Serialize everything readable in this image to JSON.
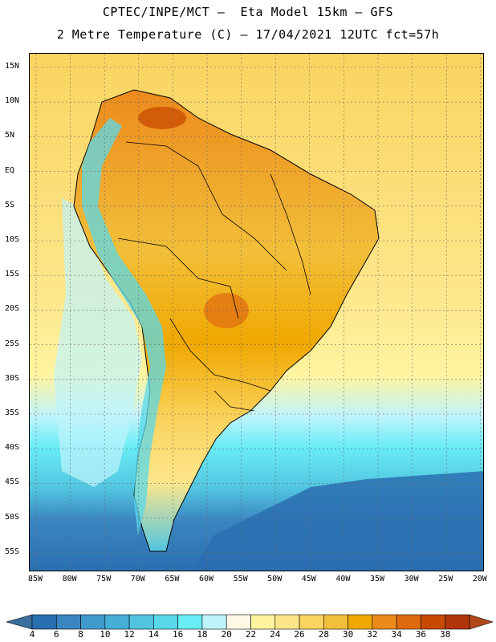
{
  "header": {
    "line1": "CPTEC/INPE/MCT –  Eta Model 15km – GFS",
    "line2": "2 Metre Temperature (C) – 17/04/2021 12UTC fct=57h"
  },
  "map": {
    "variable": "2 Metre Temperature",
    "units": "C",
    "lat_labels": [
      "15N",
      "10N",
      "5N",
      "EQ",
      "5S",
      "10S",
      "15S",
      "20S",
      "25S",
      "30S",
      "35S",
      "40S",
      "45S",
      "50S",
      "55S"
    ],
    "lon_labels": [
      "85W",
      "80W",
      "75W",
      "70W",
      "65W",
      "60W",
      "55W",
      "50W",
      "45W",
      "40W",
      "35W",
      "30W",
      "25W",
      "20W"
    ]
  },
  "colorbar": {
    "labels": [
      "4",
      "6",
      "8",
      "10",
      "12",
      "14",
      "16",
      "18",
      "20",
      "22",
      "24",
      "26",
      "28",
      "30",
      "32",
      "34",
      "36",
      "38"
    ],
    "colors": [
      "#2a6fb0",
      "#3a86c0",
      "#3e9bcc",
      "#45afd6",
      "#52c4e0",
      "#5ad8ea",
      "#68ecf5",
      "#bff3fb",
      "#fff8e6",
      "#fff4a0",
      "#fde68a",
      "#fad460",
      "#f2bf3a",
      "#f0a800",
      "#ec8a1c",
      "#e06a10",
      "#c84a00",
      "#b0360a"
    ],
    "low_color": "#3b6fa0",
    "high_color": "#b0481a"
  }
}
